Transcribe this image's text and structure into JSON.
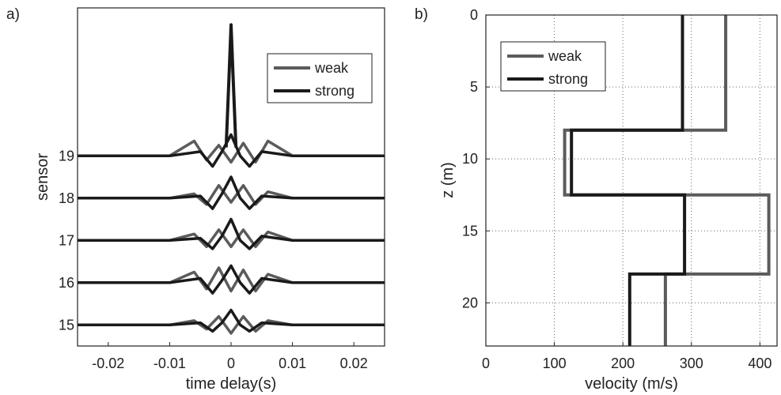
{
  "colors": {
    "weak": "#5b5b5b",
    "strong": "#1a1a1a",
    "grid": "#666666",
    "axis": "#222222"
  },
  "chart_data": [
    {
      "panel_label": "a)",
      "type": "line",
      "title": "",
      "xlabel": "time delay(s)",
      "ylabel": "sensor",
      "xlim": [
        -0.025,
        0.025
      ],
      "xticks": [
        -0.02,
        -0.01,
        0,
        0.01,
        0.02
      ],
      "xtick_labels": [
        "-0.02",
        "-0.01",
        "0",
        "0.01",
        "0.02"
      ],
      "yticks": [
        15,
        16,
        17,
        18,
        19
      ],
      "ytick_labels": [
        "15",
        "16",
        "17",
        "18",
        "19"
      ],
      "ylim": [
        14.5,
        22.5
      ],
      "grid": false,
      "legend": {
        "placement": "top-right",
        "entries": [
          "weak",
          "strong"
        ]
      },
      "series": [
        {
          "name": "weak",
          "color": "#5b5b5b",
          "traces": [
            {
              "sensor": 15,
              "x": [
                -0.025,
                -0.01,
                -0.006,
                -0.004,
                -0.002,
                0,
                0.002,
                0.004,
                0.006,
                0.01,
                0.025
              ],
              "y": [
                15.0,
                15.0,
                15.1,
                14.9,
                15.2,
                14.8,
                15.2,
                14.85,
                15.1,
                15.0,
                15.0
              ]
            },
            {
              "sensor": 16,
              "x": [
                -0.025,
                -0.01,
                -0.006,
                -0.004,
                -0.002,
                0,
                0.002,
                0.004,
                0.006,
                0.01,
                0.025
              ],
              "y": [
                16.0,
                16.0,
                16.25,
                15.85,
                16.35,
                15.8,
                16.3,
                15.8,
                16.2,
                16.0,
                16.0
              ]
            },
            {
              "sensor": 17,
              "x": [
                -0.025,
                -0.01,
                -0.006,
                -0.004,
                -0.002,
                0,
                0.002,
                0.004,
                0.006,
                0.01,
                0.025
              ],
              "y": [
                17.0,
                17.0,
                17.15,
                16.85,
                17.25,
                16.85,
                17.25,
                16.85,
                17.2,
                17.0,
                17.0
              ]
            },
            {
              "sensor": 18,
              "x": [
                -0.025,
                -0.01,
                -0.006,
                -0.004,
                -0.002,
                0,
                0.002,
                0.004,
                0.006,
                0.01,
                0.025
              ],
              "y": [
                18.0,
                18.0,
                18.1,
                17.85,
                18.3,
                17.9,
                18.3,
                17.85,
                18.15,
                18.0,
                18.0
              ]
            },
            {
              "sensor": 19,
              "x": [
                -0.025,
                -0.01,
                -0.006,
                -0.004,
                -0.002,
                0,
                0.002,
                0.004,
                0.006,
                0.01,
                0.025
              ],
              "y": [
                19.0,
                19.0,
                19.35,
                18.9,
                19.25,
                18.85,
                19.3,
                18.85,
                19.35,
                19.0,
                19.0
              ]
            }
          ]
        },
        {
          "name": "strong",
          "color": "#1a1a1a",
          "traces": [
            {
              "sensor": 15,
              "x": [
                -0.025,
                -0.01,
                -0.005,
                -0.003,
                -0.0015,
                0,
                0.0015,
                0.003,
                0.005,
                0.01,
                0.025
              ],
              "y": [
                15.0,
                15.0,
                15.05,
                14.85,
                15.05,
                15.35,
                15.0,
                14.85,
                15.05,
                15.0,
                15.0
              ]
            },
            {
              "sensor": 16,
              "x": [
                -0.025,
                -0.01,
                -0.005,
                -0.003,
                -0.0015,
                0,
                0.0015,
                0.003,
                0.005,
                0.01,
                0.025
              ],
              "y": [
                16.0,
                16.0,
                16.1,
                15.75,
                16.05,
                16.4,
                16.0,
                15.75,
                16.1,
                16.0,
                16.0
              ]
            },
            {
              "sensor": 17,
              "x": [
                -0.025,
                -0.01,
                -0.005,
                -0.003,
                -0.0015,
                0,
                0.0015,
                0.003,
                0.005,
                0.01,
                0.025
              ],
              "y": [
                17.0,
                17.0,
                17.05,
                16.8,
                17.1,
                17.5,
                17.0,
                16.8,
                17.1,
                17.0,
                17.0
              ]
            },
            {
              "sensor": 18,
              "x": [
                -0.025,
                -0.01,
                -0.005,
                -0.003,
                -0.0015,
                0,
                0.0015,
                0.003,
                0.005,
                0.01,
                0.025
              ],
              "y": [
                18.0,
                18.0,
                18.05,
                17.75,
                18.1,
                18.5,
                18.0,
                17.75,
                18.05,
                18.0,
                18.0
              ]
            },
            {
              "sensor": 19,
              "x": [
                -0.025,
                -0.01,
                -0.005,
                -0.003,
                -0.0015,
                0,
                0.0015,
                0.003,
                0.005,
                0.01,
                0.025
              ],
              "y": [
                19.0,
                19.0,
                19.1,
                18.75,
                19.1,
                19.5,
                19.0,
                18.75,
                19.1,
                19.0,
                19.0
              ]
            }
          ]
        }
      ],
      "central_peak": {
        "x": [
          -0.0008,
          -0.0003,
          0,
          0.0003,
          0.0008
        ],
        "y": [
          19.2,
          21.0,
          22.1,
          21.0,
          19.2
        ]
      }
    },
    {
      "panel_label": "b)",
      "type": "line",
      "title": "",
      "xlabel": "velocity (m/s)",
      "ylabel": "z (m)",
      "xlim": [
        0,
        425
      ],
      "ylim": [
        0,
        23
      ],
      "y_reversed": true,
      "xticks": [
        0,
        100,
        200,
        300,
        400
      ],
      "xtick_labels": [
        "0",
        "100",
        "200",
        "300",
        "400"
      ],
      "yticks": [
        0,
        5,
        10,
        15,
        20
      ],
      "ytick_labels": [
        "0",
        "5",
        "10",
        "15",
        "20"
      ],
      "grid": true,
      "legend": {
        "placement": "top-left",
        "entries": [
          "weak",
          "strong"
        ]
      },
      "series": [
        {
          "name": "weak",
          "color": "#5b5b5b",
          "x": [
            350,
            350,
            115,
            115,
            413,
            413,
            262,
            262
          ],
          "y": [
            0,
            8,
            8,
            12.5,
            12.5,
            18,
            18,
            23
          ]
        },
        {
          "name": "strong",
          "color": "#1a1a1a",
          "x": [
            287,
            287,
            125,
            125,
            290,
            290,
            210,
            210
          ],
          "y": [
            0,
            8,
            8,
            12.5,
            12.5,
            18,
            18,
            23
          ]
        }
      ]
    }
  ]
}
